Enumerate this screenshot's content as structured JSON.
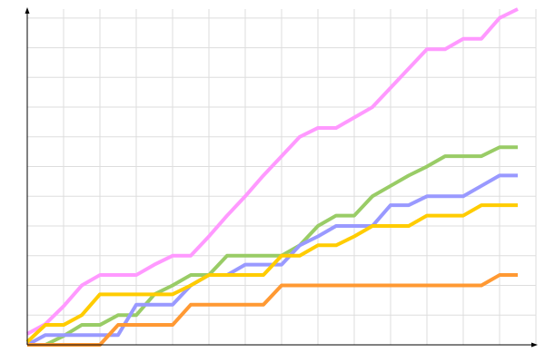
{
  "chart_data": {
    "type": "line",
    "x": [
      0,
      1,
      2,
      3,
      4,
      5,
      6,
      7,
      8,
      9,
      10,
      11,
      12,
      13,
      14,
      15,
      16,
      17,
      18,
      19,
      20,
      21,
      22,
      23,
      24,
      25,
      26,
      27
    ],
    "xlim": [
      0,
      28
    ],
    "xticks": [
      0,
      2,
      4,
      6,
      8,
      10,
      12,
      14,
      16,
      18,
      20,
      22,
      24,
      26,
      28
    ],
    "ylim": [
      0,
      11.3
    ],
    "yticks": [
      0,
      1,
      2,
      3,
      4,
      5,
      6,
      7,
      8,
      9,
      10,
      11
    ],
    "grid": true,
    "series": [
      {
        "color": "#ff99ff",
        "values": [
          0.37,
          0.7,
          1.3,
          2.0,
          2.35,
          2.35,
          2.35,
          2.7,
          3.0,
          3.0,
          3.65,
          4.35,
          5.0,
          5.7,
          6.35,
          7.0,
          7.3,
          7.3,
          7.65,
          8.0,
          8.65,
          9.3,
          9.95,
          9.95,
          10.3,
          10.3,
          11.0,
          11.3
        ]
      },
      {
        "color": "#99cc66",
        "values": [
          0,
          0,
          0.3,
          0.67,
          0.67,
          1.0,
          1.0,
          1.7,
          2.0,
          2.35,
          2.35,
          3.0,
          3.0,
          3.0,
          3.0,
          3.35,
          4.0,
          4.35,
          4.35,
          5.0,
          5.35,
          5.7,
          6.0,
          6.35,
          6.35,
          6.35,
          6.65,
          6.65
        ]
      },
      {
        "color": "#9999ff",
        "values": [
          0,
          0.33,
          0.33,
          0.33,
          0.33,
          0.33,
          1.35,
          1.35,
          1.35,
          2.0,
          2.35,
          2.35,
          2.7,
          2.7,
          2.7,
          3.35,
          3.65,
          4.0,
          4.0,
          4.0,
          4.7,
          4.7,
          5.0,
          5.0,
          5.0,
          5.35,
          5.7,
          5.7
        ]
      },
      {
        "color": "#ffcc00",
        "values": [
          0.1,
          0.67,
          0.67,
          1.0,
          1.7,
          1.7,
          1.7,
          1.7,
          1.7,
          2.0,
          2.35,
          2.35,
          2.35,
          2.35,
          3.0,
          3.0,
          3.35,
          3.35,
          3.65,
          4.0,
          4.0,
          4.0,
          4.35,
          4.35,
          4.35,
          4.7,
          4.7,
          4.7
        ]
      },
      {
        "color": "#ff9933",
        "values": [
          0,
          0,
          0,
          0,
          0,
          0.67,
          0.67,
          0.67,
          0.67,
          1.35,
          1.35,
          1.35,
          1.35,
          1.35,
          2.0,
          2.0,
          2.0,
          2.0,
          2.0,
          2.0,
          2.0,
          2.0,
          2.0,
          2.0,
          2.0,
          2.0,
          2.35,
          2.35
        ]
      }
    ]
  }
}
